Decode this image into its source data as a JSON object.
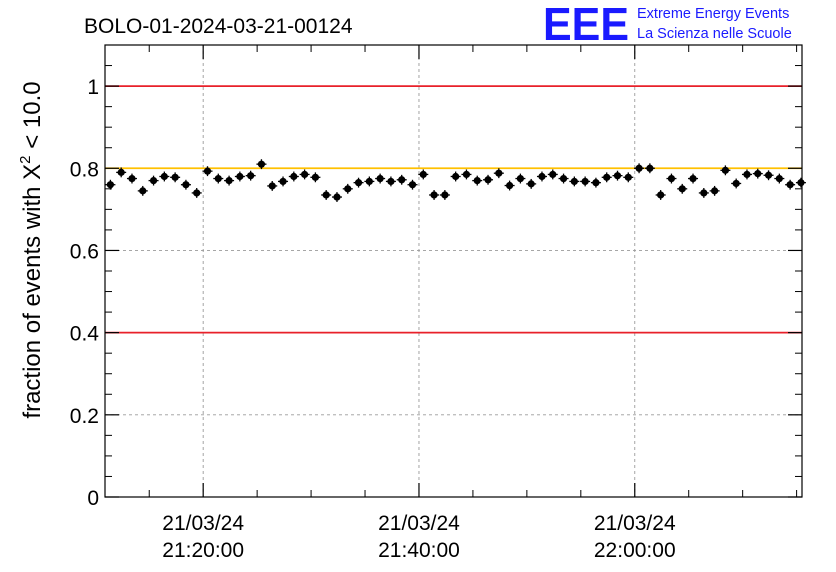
{
  "chart_data": {
    "type": "scatter",
    "title": "BOLO-01-2024-03-21-00124",
    "ylabel": {
      "prefix": "fraction of events with ",
      "chi": "X",
      "sup": "2",
      "suffix": " < 10.0"
    },
    "xlabel": "",
    "ylim": [
      0,
      1.1
    ],
    "xlim": [
      "21/03/24 21:10:54",
      "21/03/24 22:15:30"
    ],
    "grid": true,
    "y_ticks": [
      {
        "value": 0,
        "label": "0"
      },
      {
        "value": 0.2,
        "label": "0.2"
      },
      {
        "value": 0.4,
        "label": "0.4"
      },
      {
        "value": 0.6,
        "label": "0.6"
      },
      {
        "value": 0.8,
        "label": "0.8"
      },
      {
        "value": 1,
        "label": "1"
      }
    ],
    "x_ticks": [
      {
        "time": "21:20:00",
        "date_label": "21/03/24",
        "time_label": "21:20:00"
      },
      {
        "time": "21:40:00",
        "date_label": "21/03/24",
        "time_label": "21:40:00"
      },
      {
        "time": "22:00:00",
        "date_label": "21/03/24",
        "time_label": "22:00:00"
      }
    ],
    "reference_lines": [
      {
        "y": 1.0,
        "color": "#e8202a"
      },
      {
        "y": 0.4,
        "color": "#e8202a"
      },
      {
        "y": 0.8,
        "color": "#ffc000"
      }
    ],
    "series": [
      {
        "x": [
          "21:11:24",
          "21:12:24",
          "21:13:24",
          "21:14:24",
          "21:15:24",
          "21:16:24",
          "21:17:24",
          "21:18:24",
          "21:19:24",
          "21:20:24",
          "21:21:24",
          "21:22:24",
          "21:23:24",
          "21:24:24",
          "21:25:24",
          "21:26:24",
          "21:27:24",
          "21:28:24",
          "21:29:24",
          "21:30:24",
          "21:31:24",
          "21:32:24",
          "21:33:24",
          "21:34:24",
          "21:35:24",
          "21:36:24",
          "21:37:24",
          "21:38:24",
          "21:39:24",
          "21:40:24",
          "21:41:24",
          "21:42:24",
          "21:43:24",
          "21:44:24",
          "21:45:24",
          "21:46:24",
          "21:47:24",
          "21:48:24",
          "21:49:24",
          "21:50:24",
          "21:51:24",
          "21:52:24",
          "21:53:24",
          "21:54:24",
          "21:55:24",
          "21:56:24",
          "21:57:24",
          "21:58:24",
          "21:59:24",
          "22:00:24",
          "22:01:24",
          "22:02:24",
          "22:03:24",
          "22:04:24",
          "22:05:24",
          "22:06:24",
          "22:07:24",
          "22:08:24",
          "22:09:24",
          "22:10:24",
          "22:11:24",
          "22:12:24",
          "22:13:24",
          "22:14:24",
          "22:15:24"
        ],
        "values": [
          0.76,
          0.79,
          0.775,
          0.745,
          0.77,
          0.78,
          0.778,
          0.76,
          0.74,
          0.793,
          0.775,
          0.77,
          0.78,
          0.782,
          0.81,
          0.757,
          0.768,
          0.78,
          0.785,
          0.778,
          0.735,
          0.73,
          0.75,
          0.765,
          0.768,
          0.775,
          0.768,
          0.772,
          0.76,
          0.785,
          0.735,
          0.735,
          0.78,
          0.785,
          0.77,
          0.772,
          0.788,
          0.758,
          0.775,
          0.762,
          0.78,
          0.785,
          0.775,
          0.768,
          0.768,
          0.765,
          0.778,
          0.782,
          0.778,
          0.8,
          0.8,
          0.735,
          0.775,
          0.75,
          0.775,
          0.74,
          0.745,
          0.795,
          0.763,
          0.785,
          0.787,
          0.783,
          0.775,
          0.76,
          0.765
        ],
        "errors": [
          0.012,
          0.012,
          0.012,
          0.012,
          0.012,
          0.012,
          0.012,
          0.012,
          0.012,
          0.012,
          0.012,
          0.012,
          0.012,
          0.012,
          0.012,
          0.012,
          0.012,
          0.012,
          0.012,
          0.012,
          0.012,
          0.012,
          0.012,
          0.012,
          0.012,
          0.012,
          0.012,
          0.012,
          0.012,
          0.012,
          0.012,
          0.012,
          0.012,
          0.012,
          0.012,
          0.012,
          0.012,
          0.012,
          0.012,
          0.012,
          0.012,
          0.012,
          0.012,
          0.012,
          0.012,
          0.012,
          0.012,
          0.012,
          0.012,
          0.012,
          0.012,
          0.012,
          0.012,
          0.012,
          0.012,
          0.012,
          0.012,
          0.012,
          0.012,
          0.012,
          0.012,
          0.012,
          0.012,
          0.012,
          0.012
        ]
      }
    ]
  },
  "logo": {
    "mark": "EEE",
    "line1": "Extreme Energy Events",
    "line2": "La Scienza nelle Scuole",
    "color": "#1a1aff"
  }
}
